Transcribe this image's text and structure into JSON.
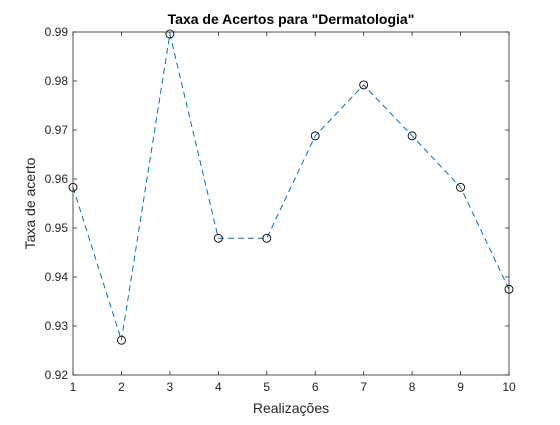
{
  "chart_data": {
    "type": "line",
    "title": "Taxa de Acertos para \"Dermatologia\"",
    "xlabel": "Realizações",
    "ylabel": "Taxa de acerto",
    "xlim": [
      1,
      10
    ],
    "ylim": [
      0.92,
      0.99
    ],
    "xticks": [
      1,
      2,
      3,
      4,
      5,
      6,
      7,
      8,
      9,
      10
    ],
    "yticks": [
      0.92,
      0.93,
      0.94,
      0.95,
      0.96,
      0.97,
      0.98,
      0.99
    ],
    "ytick_labels": [
      "0.92",
      "0.93",
      "0.94",
      "0.95",
      "0.96",
      "0.97",
      "0.98",
      "0.99"
    ],
    "x": [
      1,
      2,
      3,
      4,
      5,
      6,
      7,
      8,
      9,
      10
    ],
    "y": [
      0.9583,
      0.9271,
      0.9896,
      0.9479,
      0.9479,
      0.9688,
      0.9792,
      0.9688,
      0.9583,
      0.9375
    ],
    "line_style": "dashed",
    "marker": "circle",
    "line_color": "#0072BD",
    "marker_color": "#000000",
    "grid": false,
    "legend": false
  }
}
